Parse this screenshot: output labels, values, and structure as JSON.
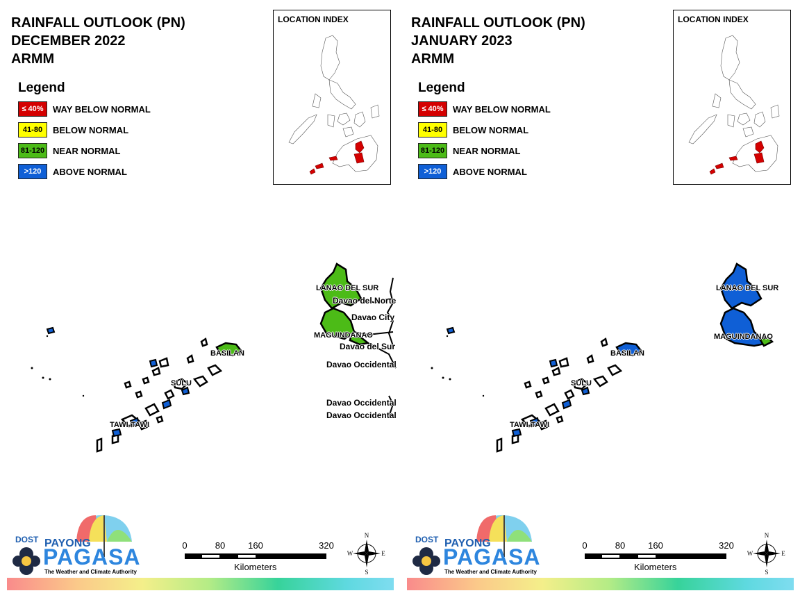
{
  "panels": [
    {
      "title_lines": [
        "RAINFALL OUTLOOK (PN)",
        "DECEMBER 2022",
        "ARMM"
      ],
      "legend_title": "Legend",
      "legend": [
        {
          "code": "≤ 40%",
          "label": "WAY BELOW NORMAL",
          "color": "#d40000",
          "text_color": "#ffffff"
        },
        {
          "code": "41-80",
          "label": "BELOW NORMAL",
          "color": "#ffff00",
          "text_color": "#000000"
        },
        {
          "code": "81-120",
          "label": "NEAR NORMAL",
          "color": "#4cbb17",
          "text_color": "#000000"
        },
        {
          "code": ">120",
          "label": "ABOVE NORMAL",
          "color": "#0f5fd6",
          "text_color": "#ffffff"
        }
      ],
      "location_index_title": "LOCATION INDEX",
      "map_labels": [
        "LANAO DEL SUR",
        "MAGUINDANAO",
        "BASILAN",
        "SULU",
        "TAWI-TAWI"
      ],
      "province_categories": {
        "LANAO DEL SUR": "NEAR NORMAL",
        "MAGUINDANAO": "NEAR NORMAL"
      },
      "neighbor_labels": [
        "Davao del Norte",
        "Davao City",
        "Davao del Sur",
        "Davao Occidental",
        "Davao Occidental",
        "Davao Occidental"
      ],
      "scale": {
        "ticks": [
          "0",
          "80",
          "160",
          "320"
        ],
        "units": "Kilometers"
      },
      "compass": {
        "n": "N",
        "s": "S",
        "e": "E",
        "w": "W"
      },
      "logo": {
        "dost": "DOST",
        "payong": "PAYONG",
        "pagasa": "PAGASA",
        "tagline": "The Weather and Climate Authority"
      }
    },
    {
      "title_lines": [
        "RAINFALL OUTLOOK (PN)",
        "JANUARY 2023",
        "ARMM"
      ],
      "legend_title": "Legend",
      "legend": [
        {
          "code": "≤ 40%",
          "label": "WAY BELOW NORMAL",
          "color": "#d40000",
          "text_color": "#ffffff"
        },
        {
          "code": "41-80",
          "label": "BELOW NORMAL",
          "color": "#ffff00",
          "text_color": "#000000"
        },
        {
          "code": "81-120",
          "label": "NEAR NORMAL",
          "color": "#4cbb17",
          "text_color": "#000000"
        },
        {
          "code": ">120",
          "label": "ABOVE NORMAL",
          "color": "#0f5fd6",
          "text_color": "#ffffff"
        }
      ],
      "location_index_title": "LOCATION INDEX",
      "map_labels": [
        "LANAO DEL SUR",
        "MAGUINDANAO",
        "BASILAN",
        "SULU",
        "TAWI-TAWI"
      ],
      "province_categories": {
        "LANAO DEL SUR": "ABOVE NORMAL",
        "MAGUINDANAO": "ABOVE NORMAL"
      },
      "neighbor_labels": [],
      "scale": {
        "ticks": [
          "0",
          "80",
          "160",
          "320"
        ],
        "units": "Kilometers"
      },
      "compass": {
        "n": "N",
        "s": "S",
        "e": "E",
        "w": "W"
      },
      "logo": {
        "dost": "DOST",
        "payong": "PAYONG",
        "pagasa": "PAGASA",
        "tagline": "The Weather and Climate Authority"
      }
    }
  ]
}
